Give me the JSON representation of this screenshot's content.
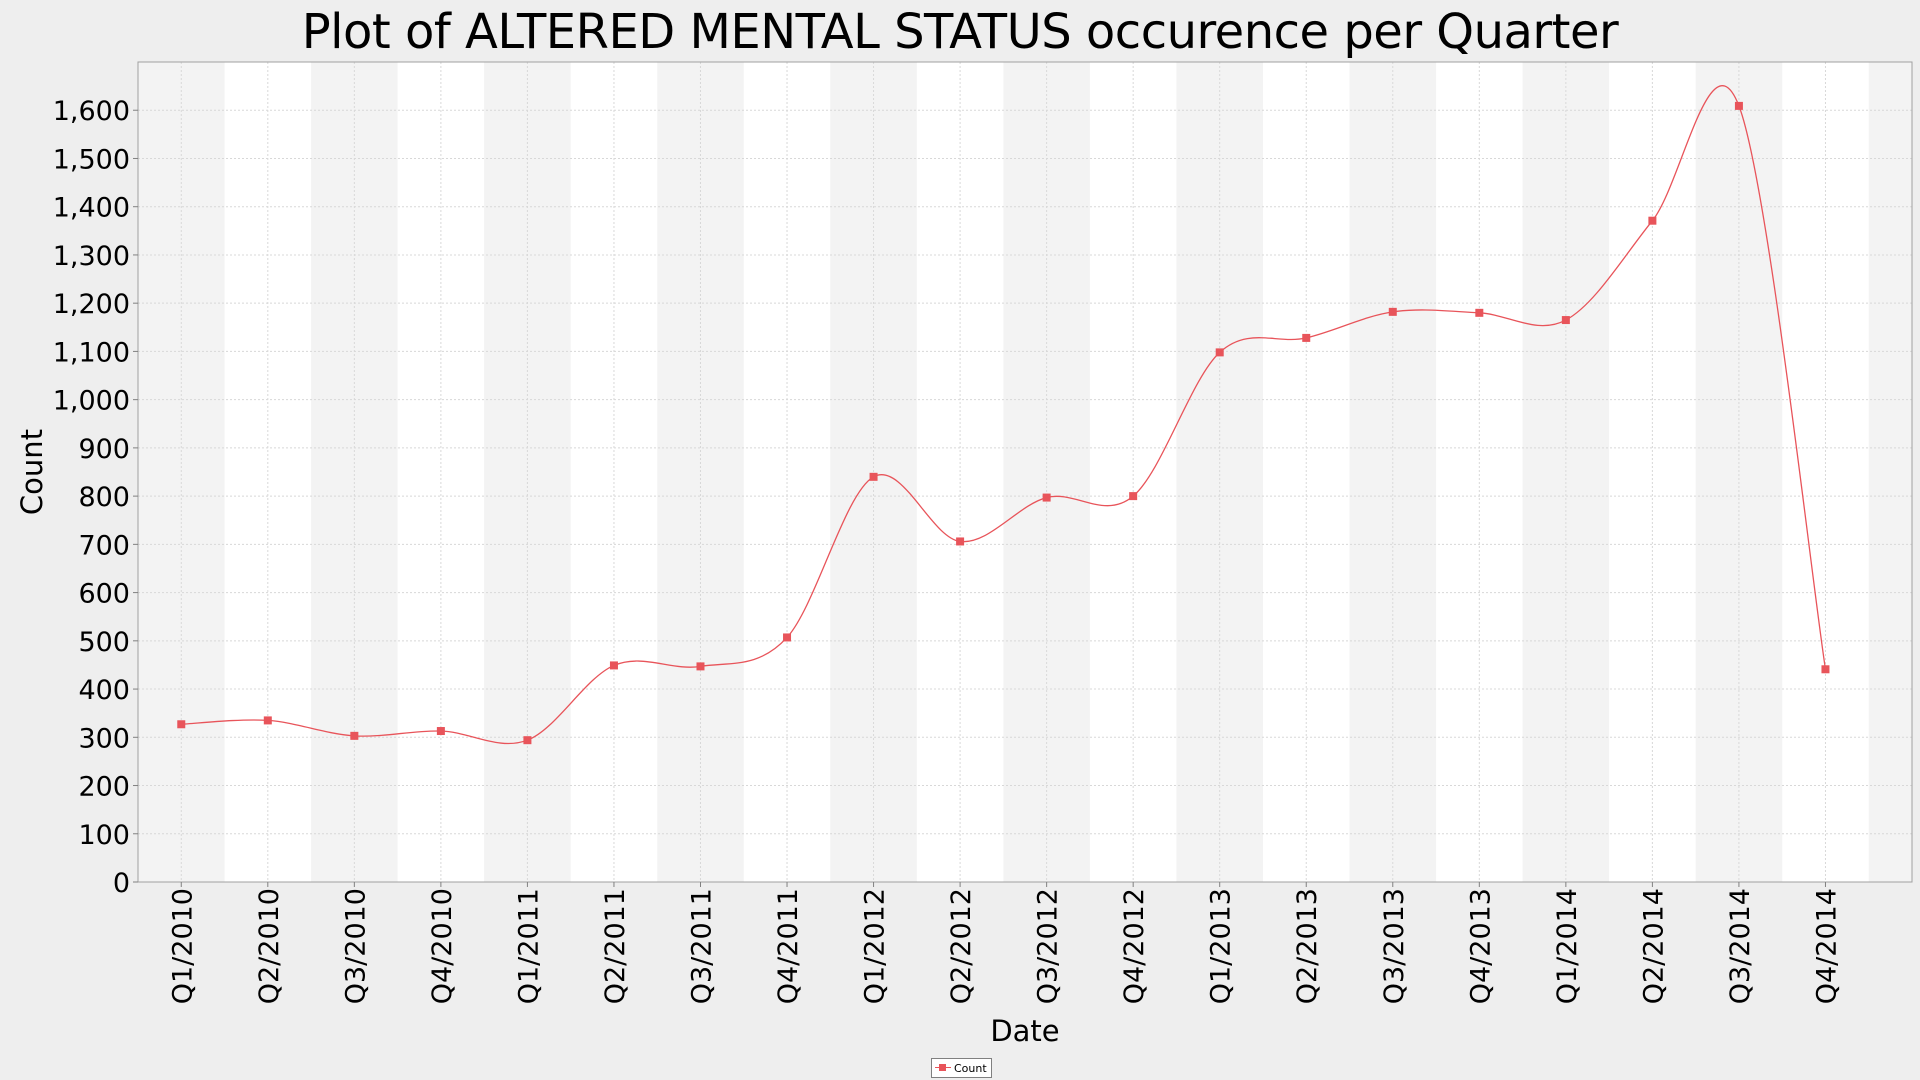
{
  "chart_data": {
    "type": "line",
    "title": "Plot of ALTERED MENTAL STATUS occurence per Quarter",
    "xlabel": "Date",
    "ylabel": "Count",
    "categories": [
      "Q1/2010",
      "Q2/2010",
      "Q3/2010",
      "Q4/2010",
      "Q1/2011",
      "Q2/2011",
      "Q3/2011",
      "Q4/2011",
      "Q1/2012",
      "Q2/2012",
      "Q3/2012",
      "Q4/2012",
      "Q1/2013",
      "Q2/2013",
      "Q3/2013",
      "Q4/2013",
      "Q1/2014",
      "Q2/2014",
      "Q3/2014",
      "Q4/2014"
    ],
    "series": [
      {
        "name": "Count",
        "color": "#e8545a",
        "values": [
          327,
          335,
          303,
          313,
          294,
          449,
          447,
          507,
          840,
          706,
          797,
          800,
          1098,
          1128,
          1182,
          1180,
          1165,
          1371,
          1609,
          441
        ]
      }
    ],
    "ylim": [
      0,
      1700
    ],
    "yticks": [
      0,
      100,
      200,
      300,
      400,
      500,
      600,
      700,
      800,
      900,
      1000,
      1100,
      1200,
      1300,
      1400,
      1500,
      1600
    ],
    "ytick_labels": [
      "0",
      "100",
      "200",
      "300",
      "400",
      "500",
      "600",
      "700",
      "800",
      "900",
      "1,000",
      "1,100",
      "1,200",
      "1,300",
      "1,400",
      "1,500",
      "1,600"
    ],
    "grid": true,
    "alternating_bands": true,
    "legend": {
      "position": "bottom-center",
      "label": "Count"
    }
  }
}
